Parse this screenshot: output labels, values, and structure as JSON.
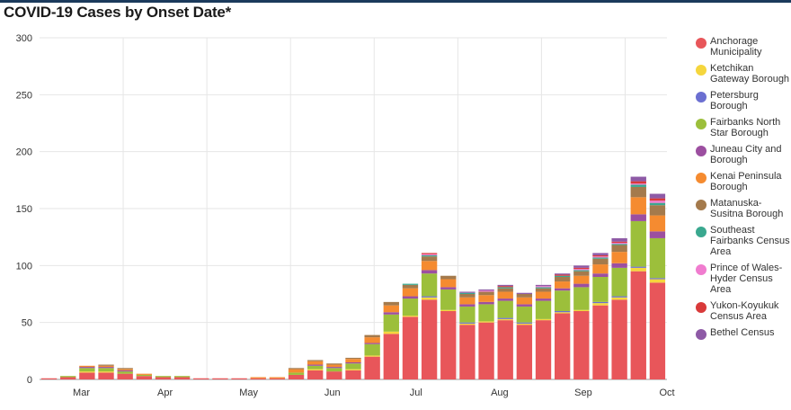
{
  "header": {
    "title": "COVID-19 Cases by Onset Date*"
  },
  "chart_data": {
    "type": "bar",
    "stacked": true,
    "title": "COVID-19 Cases by Onset Date*",
    "xlabel": "",
    "ylabel": "",
    "ylim": [
      0,
      300
    ],
    "yticks": [
      0,
      50,
      100,
      150,
      200,
      250,
      300
    ],
    "xticks": [
      "Mar",
      "Apr",
      "May",
      "Jun",
      "Jul",
      "Aug",
      "Sep",
      "Oct"
    ],
    "grid": true,
    "legend_position": "right",
    "x": [
      "Feb 22",
      "Feb 29",
      "Mar 7",
      "Mar 14",
      "Mar 21",
      "Mar 28",
      "Apr 4",
      "Apr 11",
      "Apr 18",
      "Apr 25",
      "May 2",
      "May 9",
      "May 16",
      "May 23",
      "May 30",
      "Jun 6",
      "Jun 13",
      "Jun 20",
      "Jun 27",
      "Jul 4",
      "Jul 11",
      "Jul 18",
      "Jul 25",
      "Aug 1",
      "Aug 8",
      "Aug 15",
      "Aug 22",
      "Aug 29",
      "Sep 5",
      "Sep 12",
      "Sep 19",
      "Sep 26",
      "Oct 3"
    ],
    "series": [
      {
        "name": "Anchorage Municipality",
        "color": "#e8565a",
        "values": [
          1,
          2,
          6,
          6,
          5,
          3,
          2,
          2,
          1,
          1,
          1,
          1,
          1,
          4,
          8,
          7,
          8,
          20,
          40,
          55,
          70,
          60,
          48,
          50,
          52,
          48,
          52,
          58,
          60,
          65,
          70,
          95,
          85
        ]
      },
      {
        "name": "Ketchikan Gateway Borough",
        "color": "#f5d63d",
        "values": [
          0,
          0,
          1,
          1,
          0,
          0,
          0,
          0,
          0,
          0,
          0,
          0,
          0,
          0,
          1,
          0,
          1,
          1,
          2,
          1,
          2,
          1,
          1,
          1,
          1,
          1,
          1,
          1,
          1,
          2,
          2,
          3,
          3
        ]
      },
      {
        "name": "Petersburg Borough",
        "color": "#6b6fd1",
        "values": [
          0,
          0,
          0,
          0,
          0,
          0,
          0,
          0,
          0,
          0,
          0,
          0,
          0,
          0,
          0,
          0,
          0,
          0,
          0,
          0,
          1,
          0,
          1,
          0,
          1,
          1,
          0,
          1,
          0,
          1,
          1,
          1,
          1
        ]
      },
      {
        "name": "Fairbanks North Star Borough",
        "color": "#9cbf3b",
        "values": [
          0,
          1,
          3,
          3,
          2,
          1,
          1,
          1,
          0,
          0,
          0,
          0,
          0,
          2,
          3,
          3,
          5,
          10,
          15,
          15,
          20,
          18,
          14,
          15,
          15,
          14,
          16,
          18,
          20,
          22,
          25,
          40,
          35
        ]
      },
      {
        "name": "Juneau City and Borough",
        "color": "#9c4fa0",
        "values": [
          0,
          0,
          1,
          1,
          1,
          0,
          0,
          0,
          0,
          0,
          0,
          0,
          0,
          0,
          1,
          1,
          1,
          1,
          2,
          2,
          3,
          2,
          2,
          2,
          2,
          2,
          2,
          2,
          3,
          3,
          4,
          6,
          6
        ]
      },
      {
        "name": "Kenai Peninsula Borough",
        "color": "#f58b30",
        "values": [
          0,
          0,
          1,
          1,
          1,
          1,
          0,
          0,
          0,
          0,
          0,
          1,
          1,
          3,
          3,
          2,
          3,
          5,
          6,
          7,
          8,
          7,
          6,
          6,
          6,
          6,
          6,
          6,
          7,
          8,
          10,
          15,
          14
        ]
      },
      {
        "name": "Matanuska-Susitna Borough",
        "color": "#a47a4c",
        "values": [
          0,
          0,
          0,
          1,
          1,
          0,
          0,
          0,
          0,
          0,
          0,
          0,
          0,
          1,
          1,
          1,
          1,
          2,
          3,
          3,
          4,
          3,
          3,
          3,
          3,
          3,
          3,
          4,
          4,
          5,
          6,
          9,
          9
        ]
      },
      {
        "name": "Southeast Fairbanks Census Area",
        "color": "#3aa88f",
        "values": [
          0,
          0,
          0,
          0,
          0,
          0,
          0,
          0,
          0,
          0,
          0,
          0,
          0,
          0,
          0,
          0,
          0,
          0,
          0,
          1,
          1,
          0,
          1,
          0,
          1,
          0,
          1,
          1,
          1,
          1,
          1,
          2,
          2
        ]
      },
      {
        "name": "Prince of Wales-Hyder Census Area",
        "color": "#f07ccf",
        "values": [
          0,
          0,
          0,
          0,
          0,
          0,
          0,
          0,
          0,
          0,
          0,
          0,
          0,
          0,
          0,
          0,
          0,
          0,
          0,
          0,
          1,
          0,
          0,
          1,
          0,
          0,
          1,
          0,
          1,
          1,
          1,
          1,
          2
        ]
      },
      {
        "name": "Yukon-Koyukuk Census Area",
        "color": "#d93a3a",
        "values": [
          0,
          0,
          0,
          0,
          0,
          0,
          0,
          0,
          0,
          0,
          0,
          0,
          0,
          0,
          0,
          0,
          0,
          0,
          0,
          0,
          1,
          0,
          0,
          0,
          1,
          0,
          0,
          1,
          1,
          1,
          1,
          2,
          2
        ]
      },
      {
        "name": "Bethel Census",
        "color": "#8e5aa6",
        "values": [
          0,
          0,
          0,
          0,
          0,
          0,
          0,
          0,
          0,
          0,
          0,
          0,
          0,
          0,
          0,
          0,
          0,
          0,
          0,
          0,
          0,
          0,
          1,
          1,
          1,
          1,
          1,
          1,
          2,
          2,
          3,
          4,
          4
        ]
      }
    ]
  },
  "legend": {
    "items": [
      {
        "label": "Anchorage Municipality",
        "color": "#e8565a"
      },
      {
        "label": "Ketchikan Gateway Borough",
        "color": "#f5d63d"
      },
      {
        "label": "Petersburg Borough",
        "color": "#6b6fd1"
      },
      {
        "label": "Fairbanks North Star Borough",
        "color": "#9cbf3b"
      },
      {
        "label": "Juneau City and Borough",
        "color": "#9c4fa0"
      },
      {
        "label": "Kenai Peninsula Borough",
        "color": "#f58b30"
      },
      {
        "label": "Matanuska-Susitna Borough",
        "color": "#a47a4c"
      },
      {
        "label": "Southeast Fairbanks Census Area",
        "color": "#3aa88f"
      },
      {
        "label": "Prince of Wales-Hyder Census Area",
        "color": "#f07ccf"
      },
      {
        "label": "Yukon-Koyukuk Census Area",
        "color": "#d93a3a"
      },
      {
        "label": "Bethel Census",
        "color": "#8e5aa6"
      }
    ]
  }
}
